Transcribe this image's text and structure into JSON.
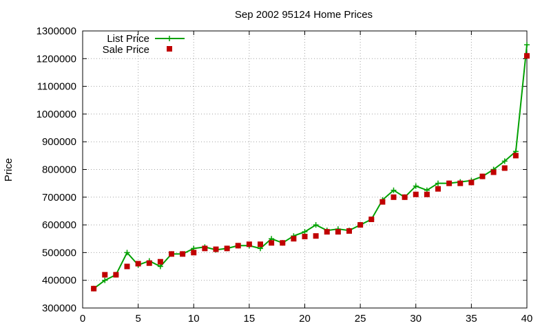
{
  "chart_data": {
    "type": "line",
    "title": "Sep 2002 95124 Home Prices",
    "xlabel": "",
    "ylabel": "Price",
    "xlim": [
      0,
      40
    ],
    "ylim": [
      300000,
      1300000
    ],
    "xticks": [
      0,
      5,
      10,
      15,
      20,
      25,
      30,
      35,
      40
    ],
    "yticks": [
      300000,
      400000,
      500000,
      600000,
      700000,
      800000,
      900000,
      1000000,
      1100000,
      1200000,
      1300000
    ],
    "grid": true,
    "legend_position": "top-left",
    "x": [
      1,
      2,
      3,
      4,
      5,
      6,
      7,
      8,
      9,
      10,
      11,
      12,
      13,
      14,
      15,
      16,
      17,
      18,
      19,
      20,
      21,
      22,
      23,
      24,
      25,
      26,
      27,
      28,
      29,
      30,
      31,
      32,
      33,
      34,
      35,
      36,
      37,
      38,
      39,
      40
    ],
    "series": [
      {
        "name": "List Price",
        "style": "line-with-plus-markers",
        "color": "#00a000",
        "values": [
          370000,
          400000,
          420000,
          500000,
          455000,
          470000,
          450000,
          495000,
          495000,
          515000,
          520000,
          510000,
          515000,
          525000,
          525000,
          515000,
          550000,
          535000,
          560000,
          575000,
          600000,
          580000,
          585000,
          580000,
          600000,
          620000,
          690000,
          725000,
          700000,
          740000,
          725000,
          750000,
          750000,
          755000,
          760000,
          775000,
          800000,
          830000,
          865000,
          1250000
        ]
      },
      {
        "name": "Sale Price",
        "style": "square-markers",
        "color": "#c00000",
        "values": [
          370000,
          420000,
          420000,
          450000,
          460000,
          462000,
          467000,
          495000,
          495000,
          500000,
          515000,
          512000,
          515000,
          525000,
          530000,
          530000,
          535000,
          535000,
          550000,
          558000,
          560000,
          575000,
          575000,
          578000,
          600000,
          620000,
          683000,
          700000,
          700000,
          710000,
          710000,
          730000,
          750000,
          750000,
          753000,
          775000,
          790000,
          805000,
          850000,
          1210000
        ]
      }
    ]
  }
}
